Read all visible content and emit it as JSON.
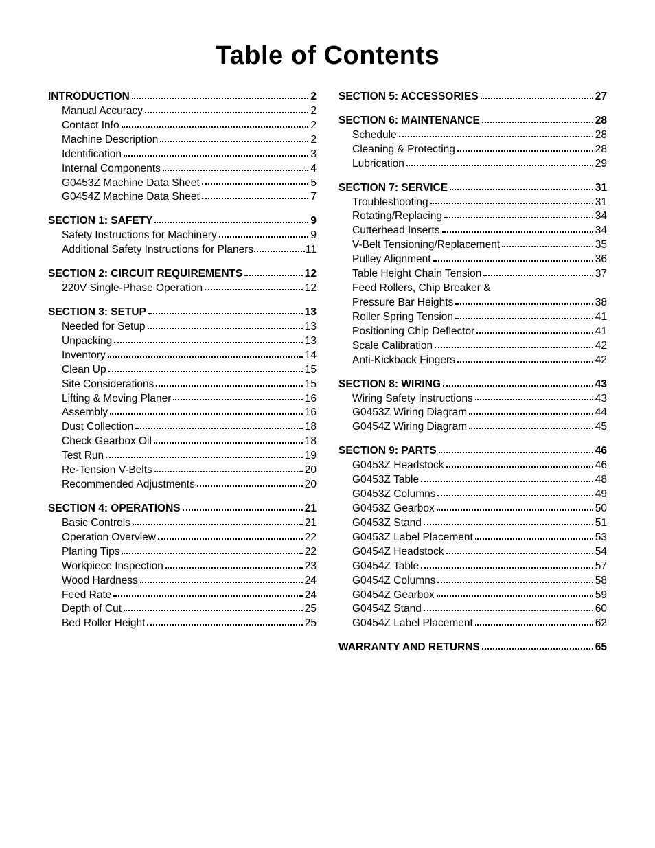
{
  "title": "Table of Contents",
  "left": [
    {
      "heading": {
        "label": "INTRODUCTION",
        "page": "2"
      },
      "items": [
        {
          "label": "Manual Accuracy",
          "page": "2"
        },
        {
          "label": "Contact Info",
          "page": "2"
        },
        {
          "label": "Machine Description",
          "page": "2"
        },
        {
          "label": "Identification",
          "page": "3"
        },
        {
          "label": "Internal Components",
          "page": "4"
        },
        {
          "label": "G0453Z Machine Data Sheet",
          "page": "5"
        },
        {
          "label": "G0454Z Machine Data Sheet",
          "page": "7"
        }
      ]
    },
    {
      "heading": {
        "label": "SECTION 1: SAFETY",
        "page": "9"
      },
      "items": [
        {
          "label": "Safety Instructions for Machinery",
          "page": "9"
        },
        {
          "label": "Additional Safety Instructions for Planers",
          "page": "11",
          "tightDots": true
        }
      ]
    },
    {
      "heading": {
        "label": "SECTION 2: CIRCUIT REQUIREMENTS",
        "page": "12"
      },
      "items": [
        {
          "label": "220V Single-Phase Operation",
          "page": "12"
        }
      ]
    },
    {
      "heading": {
        "label": "SECTION 3: SETUP",
        "page": "13"
      },
      "items": [
        {
          "label": "Needed for Setup",
          "page": "13"
        },
        {
          "label": "Unpacking",
          "page": "13"
        },
        {
          "label": "Inventory",
          "page": "14"
        },
        {
          "label": "Clean Up",
          "page": "15"
        },
        {
          "label": "Site Considerations",
          "page": "15"
        },
        {
          "label": "Lifting & Moving Planer",
          "page": "16"
        },
        {
          "label": "Assembly",
          "page": "16"
        },
        {
          "label": "Dust Collection",
          "page": "18"
        },
        {
          "label": "Check Gearbox Oil",
          "page": "18"
        },
        {
          "label": "Test Run",
          "page": "19"
        },
        {
          "label": "Re-Tension V-Belts",
          "page": "20"
        },
        {
          "label": "Recommended Adjustments",
          "page": "20"
        }
      ]
    },
    {
      "heading": {
        "label": "SECTION 4: OPERATIONS",
        "page": "21"
      },
      "items": [
        {
          "label": "Basic Controls",
          "page": "21"
        },
        {
          "label": "Operation Overview",
          "page": "22"
        },
        {
          "label": "Planing Tips",
          "page": "22"
        },
        {
          "label": "Workpiece Inspection",
          "page": "23"
        },
        {
          "label": "Wood Hardness",
          "page": "24"
        },
        {
          "label": "Feed Rate",
          "page": "24"
        },
        {
          "label": "Depth of Cut",
          "page": "25"
        },
        {
          "label": "Bed Roller Height",
          "page": "25"
        }
      ]
    }
  ],
  "right": [
    {
      "heading": {
        "label": "SECTION 5: ACCESSORIES",
        "page": "27"
      },
      "items": []
    },
    {
      "heading": {
        "label": "SECTION 6: MAINTENANCE",
        "page": "28"
      },
      "items": [
        {
          "label": "Schedule",
          "page": "28"
        },
        {
          "label": "Cleaning & Protecting",
          "page": "28"
        },
        {
          "label": "Lubrication",
          "page": "29"
        }
      ]
    },
    {
      "heading": {
        "label": "SECTION 7: SERVICE",
        "page": "31"
      },
      "items": [
        {
          "label": "Troubleshooting",
          "page": "31"
        },
        {
          "label": "Rotating/Replacing",
          "page": "34"
        },
        {
          "label": "Cutterhead Inserts",
          "page": "34"
        },
        {
          "label": "V-Belt Tensioning/Replacement",
          "page": "35"
        },
        {
          "label": "Pulley Alignment",
          "page": "36"
        },
        {
          "label": "Table Height Chain Tension",
          "page": "37"
        },
        {
          "multiline": true,
          "first": "Feed Rollers, Chip Breaker &",
          "last": "Pressure Bar Heights",
          "page": "38"
        },
        {
          "label": "Roller Spring Tension",
          "page": "41"
        },
        {
          "label": "Positioning Chip Deflector",
          "page": "41"
        },
        {
          "label": "Scale Calibration",
          "page": "42"
        },
        {
          "label": "Anti-Kickback Fingers",
          "page": "42"
        }
      ]
    },
    {
      "heading": {
        "label": "SECTION 8: WIRING",
        "page": "43"
      },
      "items": [
        {
          "label": "Wiring Safety Instructions",
          "page": "43"
        },
        {
          "label": "G0453Z Wiring Diagram",
          "page": "44"
        },
        {
          "label": "G0454Z Wiring Diagram",
          "page": "45"
        }
      ]
    },
    {
      "heading": {
        "label": "SECTION 9: PARTS",
        "page": "46"
      },
      "items": [
        {
          "label": "G0453Z Headstock",
          "page": "46"
        },
        {
          "label": "G0453Z Table",
          "page": "48"
        },
        {
          "label": "G0453Z Columns",
          "page": "49"
        },
        {
          "label": "G0453Z Gearbox",
          "page": "50"
        },
        {
          "label": "G0453Z Stand",
          "page": "51"
        },
        {
          "label": "G0453Z Label Placement",
          "page": "53"
        },
        {
          "label": "G0454Z Headstock",
          "page": "54"
        },
        {
          "label": "G0454Z Table",
          "page": "57"
        },
        {
          "label": "G0454Z Columns",
          "page": "58"
        },
        {
          "label": "G0454Z Gearbox",
          "page": "59"
        },
        {
          "label": "G0454Z Stand",
          "page": "60"
        },
        {
          "label": "G0454Z Label Placement",
          "page": "62"
        }
      ]
    },
    {
      "heading": {
        "label": "WARRANTY AND RETURNS",
        "page": "65"
      },
      "items": []
    }
  ]
}
